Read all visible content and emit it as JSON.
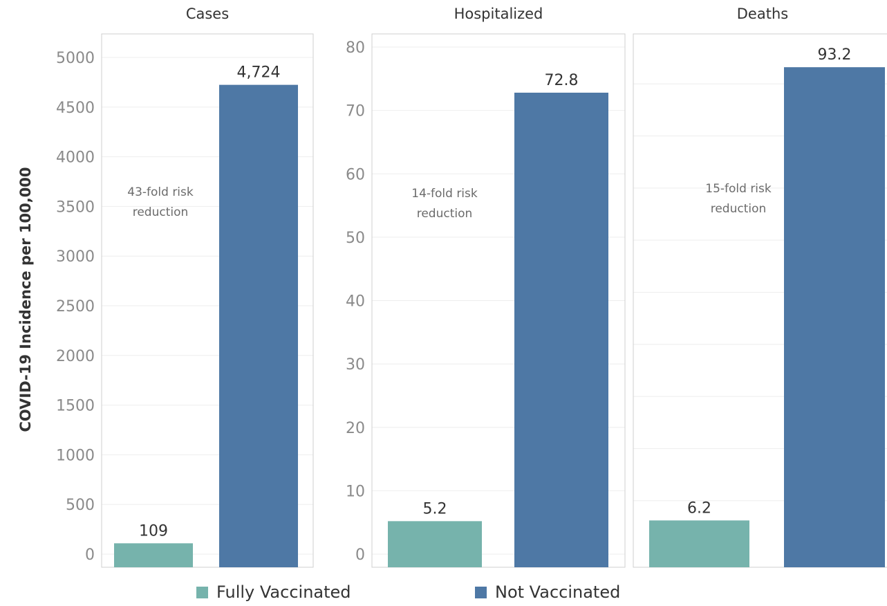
{
  "colors": {
    "fully_vaccinated": "#76b3ac",
    "not_vaccinated": "#4e78a5"
  },
  "legend": {
    "fully_vaccinated": "Fully Vaccinated",
    "not_vaccinated": "Not Vaccinated"
  },
  "chart_data": {
    "type": "bar",
    "ylabel": "COVID-19 Incidence per 100,000",
    "series_names": [
      "Fully Vaccinated",
      "Not Vaccinated"
    ],
    "legend_position": "bottom",
    "grid": true,
    "panels": [
      {
        "title": "Cases",
        "categories": [
          "Fully Vaccinated",
          "Not Vaccinated"
        ],
        "values": [
          109,
          4724
        ],
        "data_labels": [
          "109",
          "4,724"
        ],
        "ylim": [
          0,
          5000
        ],
        "yticks": [
          "0",
          "500",
          "1000",
          "1500",
          "2000",
          "2500",
          "3000",
          "3500",
          "4000",
          "4500",
          "5000"
        ],
        "annotation": [
          "43-fold risk",
          "reduction"
        ]
      },
      {
        "title": "Hospitalized",
        "categories": [
          "Fully Vaccinated",
          "Not Vaccinated"
        ],
        "values": [
          5.2,
          72.8
        ],
        "data_labels": [
          "5.2",
          "72.8"
        ],
        "ylim": [
          0,
          80
        ],
        "yticks": [
          "0",
          "10",
          "20",
          "30",
          "40",
          "50",
          "60",
          "70",
          "80"
        ],
        "annotation": [
          "14-fold risk",
          "reduction"
        ]
      },
      {
        "title": "Deaths",
        "categories": [
          "Fully Vaccinated",
          "Not Vaccinated"
        ],
        "values": [
          6.2,
          93.2
        ],
        "data_labels": [
          "6.2",
          "93.2"
        ],
        "yticks": [],
        "annotation": [
          "15-fold risk",
          "reduction"
        ]
      }
    ]
  }
}
